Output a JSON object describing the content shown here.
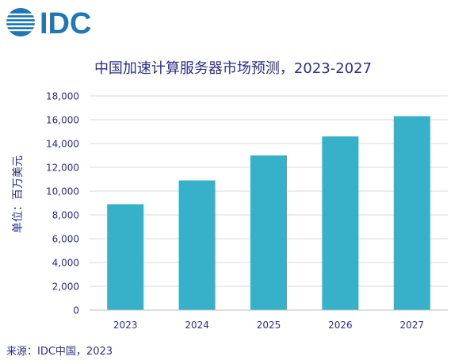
{
  "logo": {
    "text": "IDC"
  },
  "chart_data": {
    "type": "bar",
    "title": "中国加速计算服务器市场预测，2023-2027",
    "ylabel": "单位：百万美元",
    "xlabel": "",
    "categories": [
      "2023",
      "2024",
      "2025",
      "2026",
      "2027"
    ],
    "values": [
      8900,
      10900,
      13000,
      14600,
      16300
    ],
    "ylim": [
      0,
      18000
    ],
    "yticks": [
      "0",
      "2,000",
      "4,000",
      "6,000",
      "8,000",
      "10,000",
      "12,000",
      "14,000",
      "16,000",
      "18,000"
    ],
    "grid": true,
    "legend": "none",
    "bar_color": "#37b0c9",
    "grid_color": "#d9d9d9",
    "text_color": "#2b2f8a"
  },
  "source": "来源：IDC中国，2023"
}
